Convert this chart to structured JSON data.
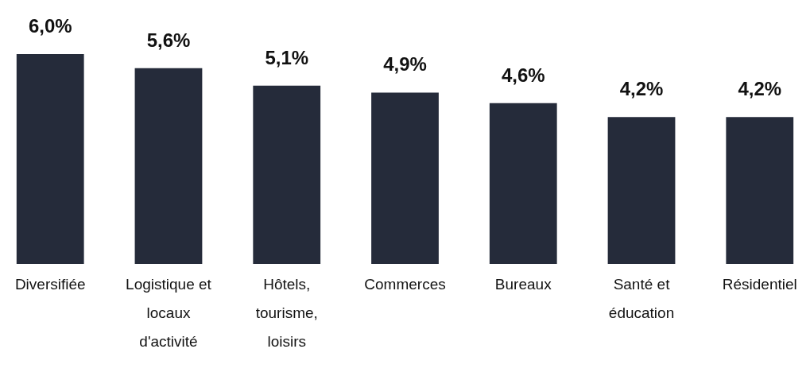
{
  "chart_data": {
    "type": "bar",
    "categories": [
      "Diversifiée",
      "Logistique et locaux d'activité",
      "Hôtels, tourisme, loisirs",
      "Commerces",
      "Bureaux",
      "Santé et éducation",
      "Résidentiel"
    ],
    "values": [
      6.0,
      5.6,
      5.1,
      4.9,
      4.6,
      4.2,
      4.2
    ],
    "value_labels": [
      "6,0%",
      "5,6%",
      "5,1%",
      "4,9%",
      "4,6%",
      "4,2%",
      "4,2%"
    ],
    "color": "#252b3a"
  }
}
